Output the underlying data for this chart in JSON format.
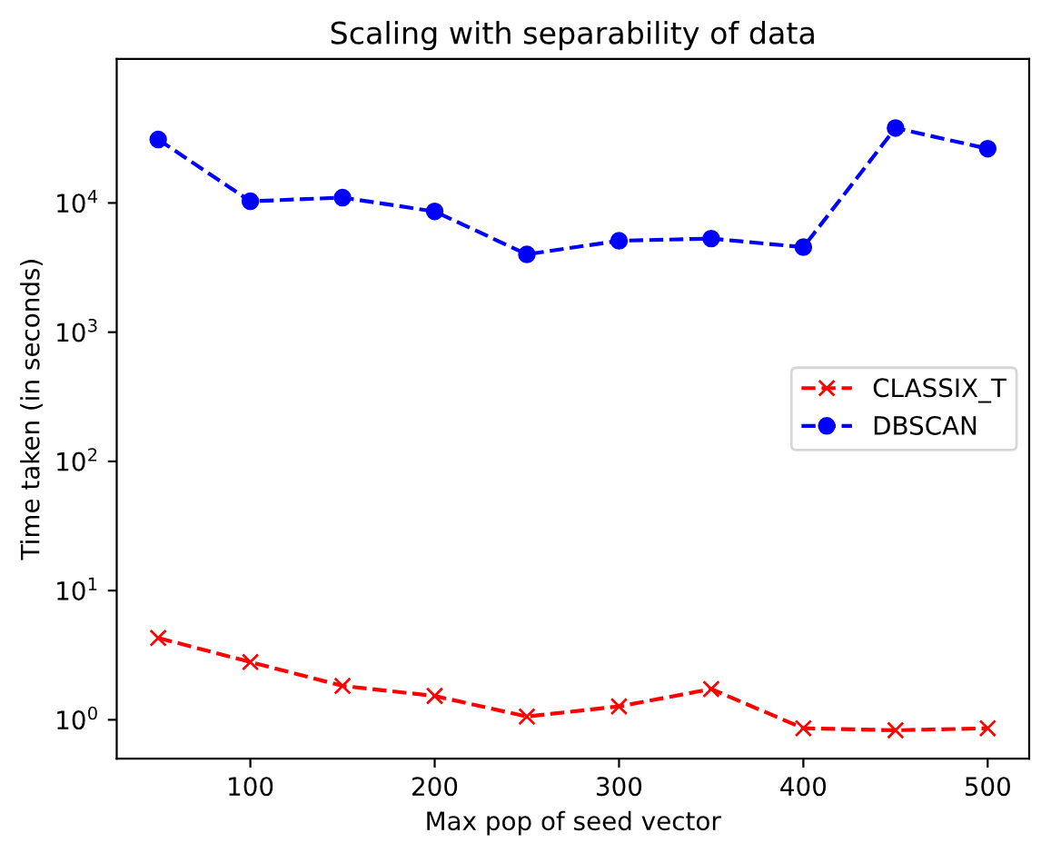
{
  "chart_data": {
    "type": "line",
    "title": "Scaling with separability of data",
    "xlabel": "Max pop of seed vector",
    "ylabel": "Time taken (in seconds)",
    "log": "y",
    "x": [
      50,
      100,
      150,
      200,
      250,
      300,
      350,
      400,
      450,
      500
    ],
    "series": [
      {
        "name": "CLASSIX_T",
        "color": "#ff0000",
        "marker": "cross",
        "line_style": "dashed",
        "values": [
          4.3,
          2.8,
          1.83,
          1.53,
          1.06,
          1.27,
          1.73,
          0.86,
          0.83,
          0.86
        ]
      },
      {
        "name": "DBSCAN",
        "color": "#0000ff",
        "marker": "circle",
        "line_style": "dashed",
        "values": [
          31000,
          10300,
          11000,
          8600,
          4000,
          5100,
          5300,
          4550,
          38000,
          26300
        ]
      }
    ],
    "xlim": [
      27.5,
      522.5
    ],
    "xticks": [
      100,
      200,
      300,
      400,
      500
    ],
    "ylim": [
      0.5,
      130000
    ],
    "yticks": [
      {
        "value": 1,
        "label": "10$^{0}$"
      },
      {
        "value": 10,
        "label": "10$^{1}$"
      },
      {
        "value": 100,
        "label": "10$^{2}$"
      },
      {
        "value": 1000,
        "label": "10$^{3}$"
      },
      {
        "value": 10000,
        "label": "10$^{4}$"
      }
    ],
    "grid": false,
    "legend": "right"
  }
}
